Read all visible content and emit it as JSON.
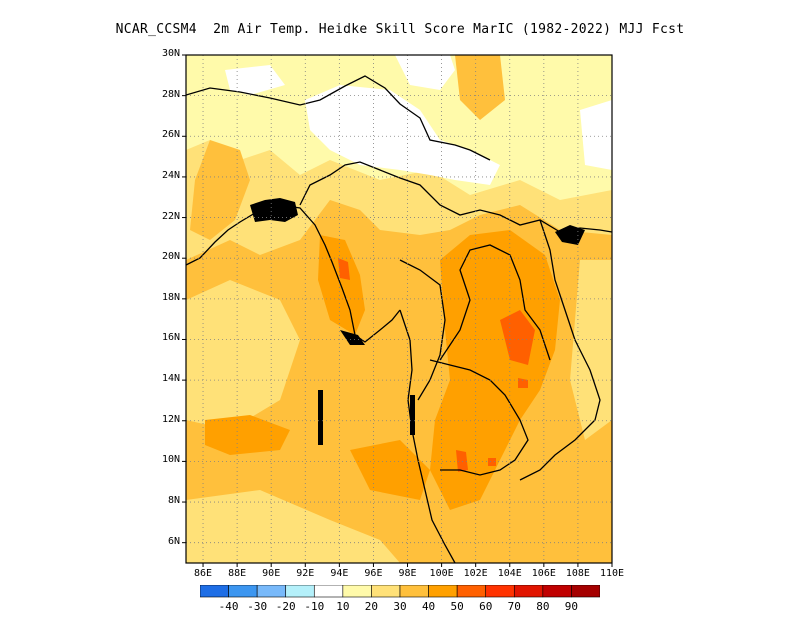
{
  "title": "NCAR_CCSM4  2m Air Temp. Heidke Skill Score MarIC (1982-2022) MJJ Fcst",
  "map": {
    "lon_range": [
      85,
      110
    ],
    "lat_range": [
      5,
      30
    ],
    "lat_ticks": [
      {
        "value": 30,
        "label": "30N"
      },
      {
        "value": 28,
        "label": "28N"
      },
      {
        "value": 26,
        "label": "26N"
      },
      {
        "value": 24,
        "label": "24N"
      },
      {
        "value": 22,
        "label": "22N"
      },
      {
        "value": 20,
        "label": "20N"
      },
      {
        "value": 18,
        "label": "18N"
      },
      {
        "value": 16,
        "label": "16N"
      },
      {
        "value": 14,
        "label": "14N"
      },
      {
        "value": 12,
        "label": "12N"
      },
      {
        "value": 10,
        "label": "10N"
      },
      {
        "value": 8,
        "label": "8N"
      },
      {
        "value": 6,
        "label": "6N"
      }
    ],
    "lon_ticks": [
      {
        "value": 86,
        "label": "86E"
      },
      {
        "value": 88,
        "label": "88E"
      },
      {
        "value": 90,
        "label": "90E"
      },
      {
        "value": 92,
        "label": "92E"
      },
      {
        "value": 94,
        "label": "94E"
      },
      {
        "value": 96,
        "label": "96E"
      },
      {
        "value": 98,
        "label": "98E"
      },
      {
        "value": 100,
        "label": "100E"
      },
      {
        "value": 102,
        "label": "102E"
      },
      {
        "value": 104,
        "label": "104E"
      },
      {
        "value": 106,
        "label": "106E"
      },
      {
        "value": 108,
        "label": "108E"
      },
      {
        "value": 110,
        "label": "110E"
      }
    ],
    "grid": "dotted"
  },
  "colorbar": {
    "boundaries": [
      "-40",
      "-30",
      "-20",
      "-10",
      "10",
      "20",
      "30",
      "40",
      "50",
      "60",
      "70",
      "80",
      "90"
    ],
    "colors": [
      "#1e6ee6",
      "#3c96f0",
      "#78b9fa",
      "#b4f0fa",
      "#ffffff",
      "#fffaaa",
      "#ffe178",
      "#ffc03c",
      "#ffa000",
      "#ff6000",
      "#ff3200",
      "#e11400",
      "#c00000",
      "#a50000"
    ]
  }
}
